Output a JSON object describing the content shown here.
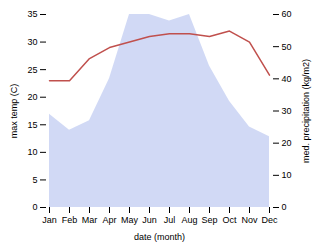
{
  "chart_data": {
    "type": "line",
    "xlabel": "date (month)",
    "ylabel": "max temp (C)",
    "y2label": "med. precipitation (kg/m2)",
    "categories": [
      "Jan",
      "Feb",
      "Mar",
      "Apr",
      "May",
      "Jun",
      "Jul",
      "Aug",
      "Sep",
      "Oct",
      "Nov",
      "Dec"
    ],
    "series": [
      {
        "type": "area",
        "axis": "y2",
        "color": "#b8c4f0",
        "values": [
          29,
          24,
          27,
          40,
          60,
          60,
          58,
          60,
          44,
          33,
          25,
          22
        ]
      },
      {
        "type": "line",
        "color": "#c0504d",
        "values": [
          23,
          23,
          27,
          29,
          30,
          31,
          31.5,
          31.5,
          31,
          32,
          30,
          24
        ]
      }
    ],
    "ylim": [
      0,
      35
    ],
    "yticks": [
      0,
      5,
      10,
      15,
      20,
      25,
      30,
      35
    ],
    "y2lim": [
      0,
      60
    ],
    "y2ticks": [
      0,
      10,
      20,
      30,
      40,
      50,
      60
    ],
    "grid": false
  }
}
